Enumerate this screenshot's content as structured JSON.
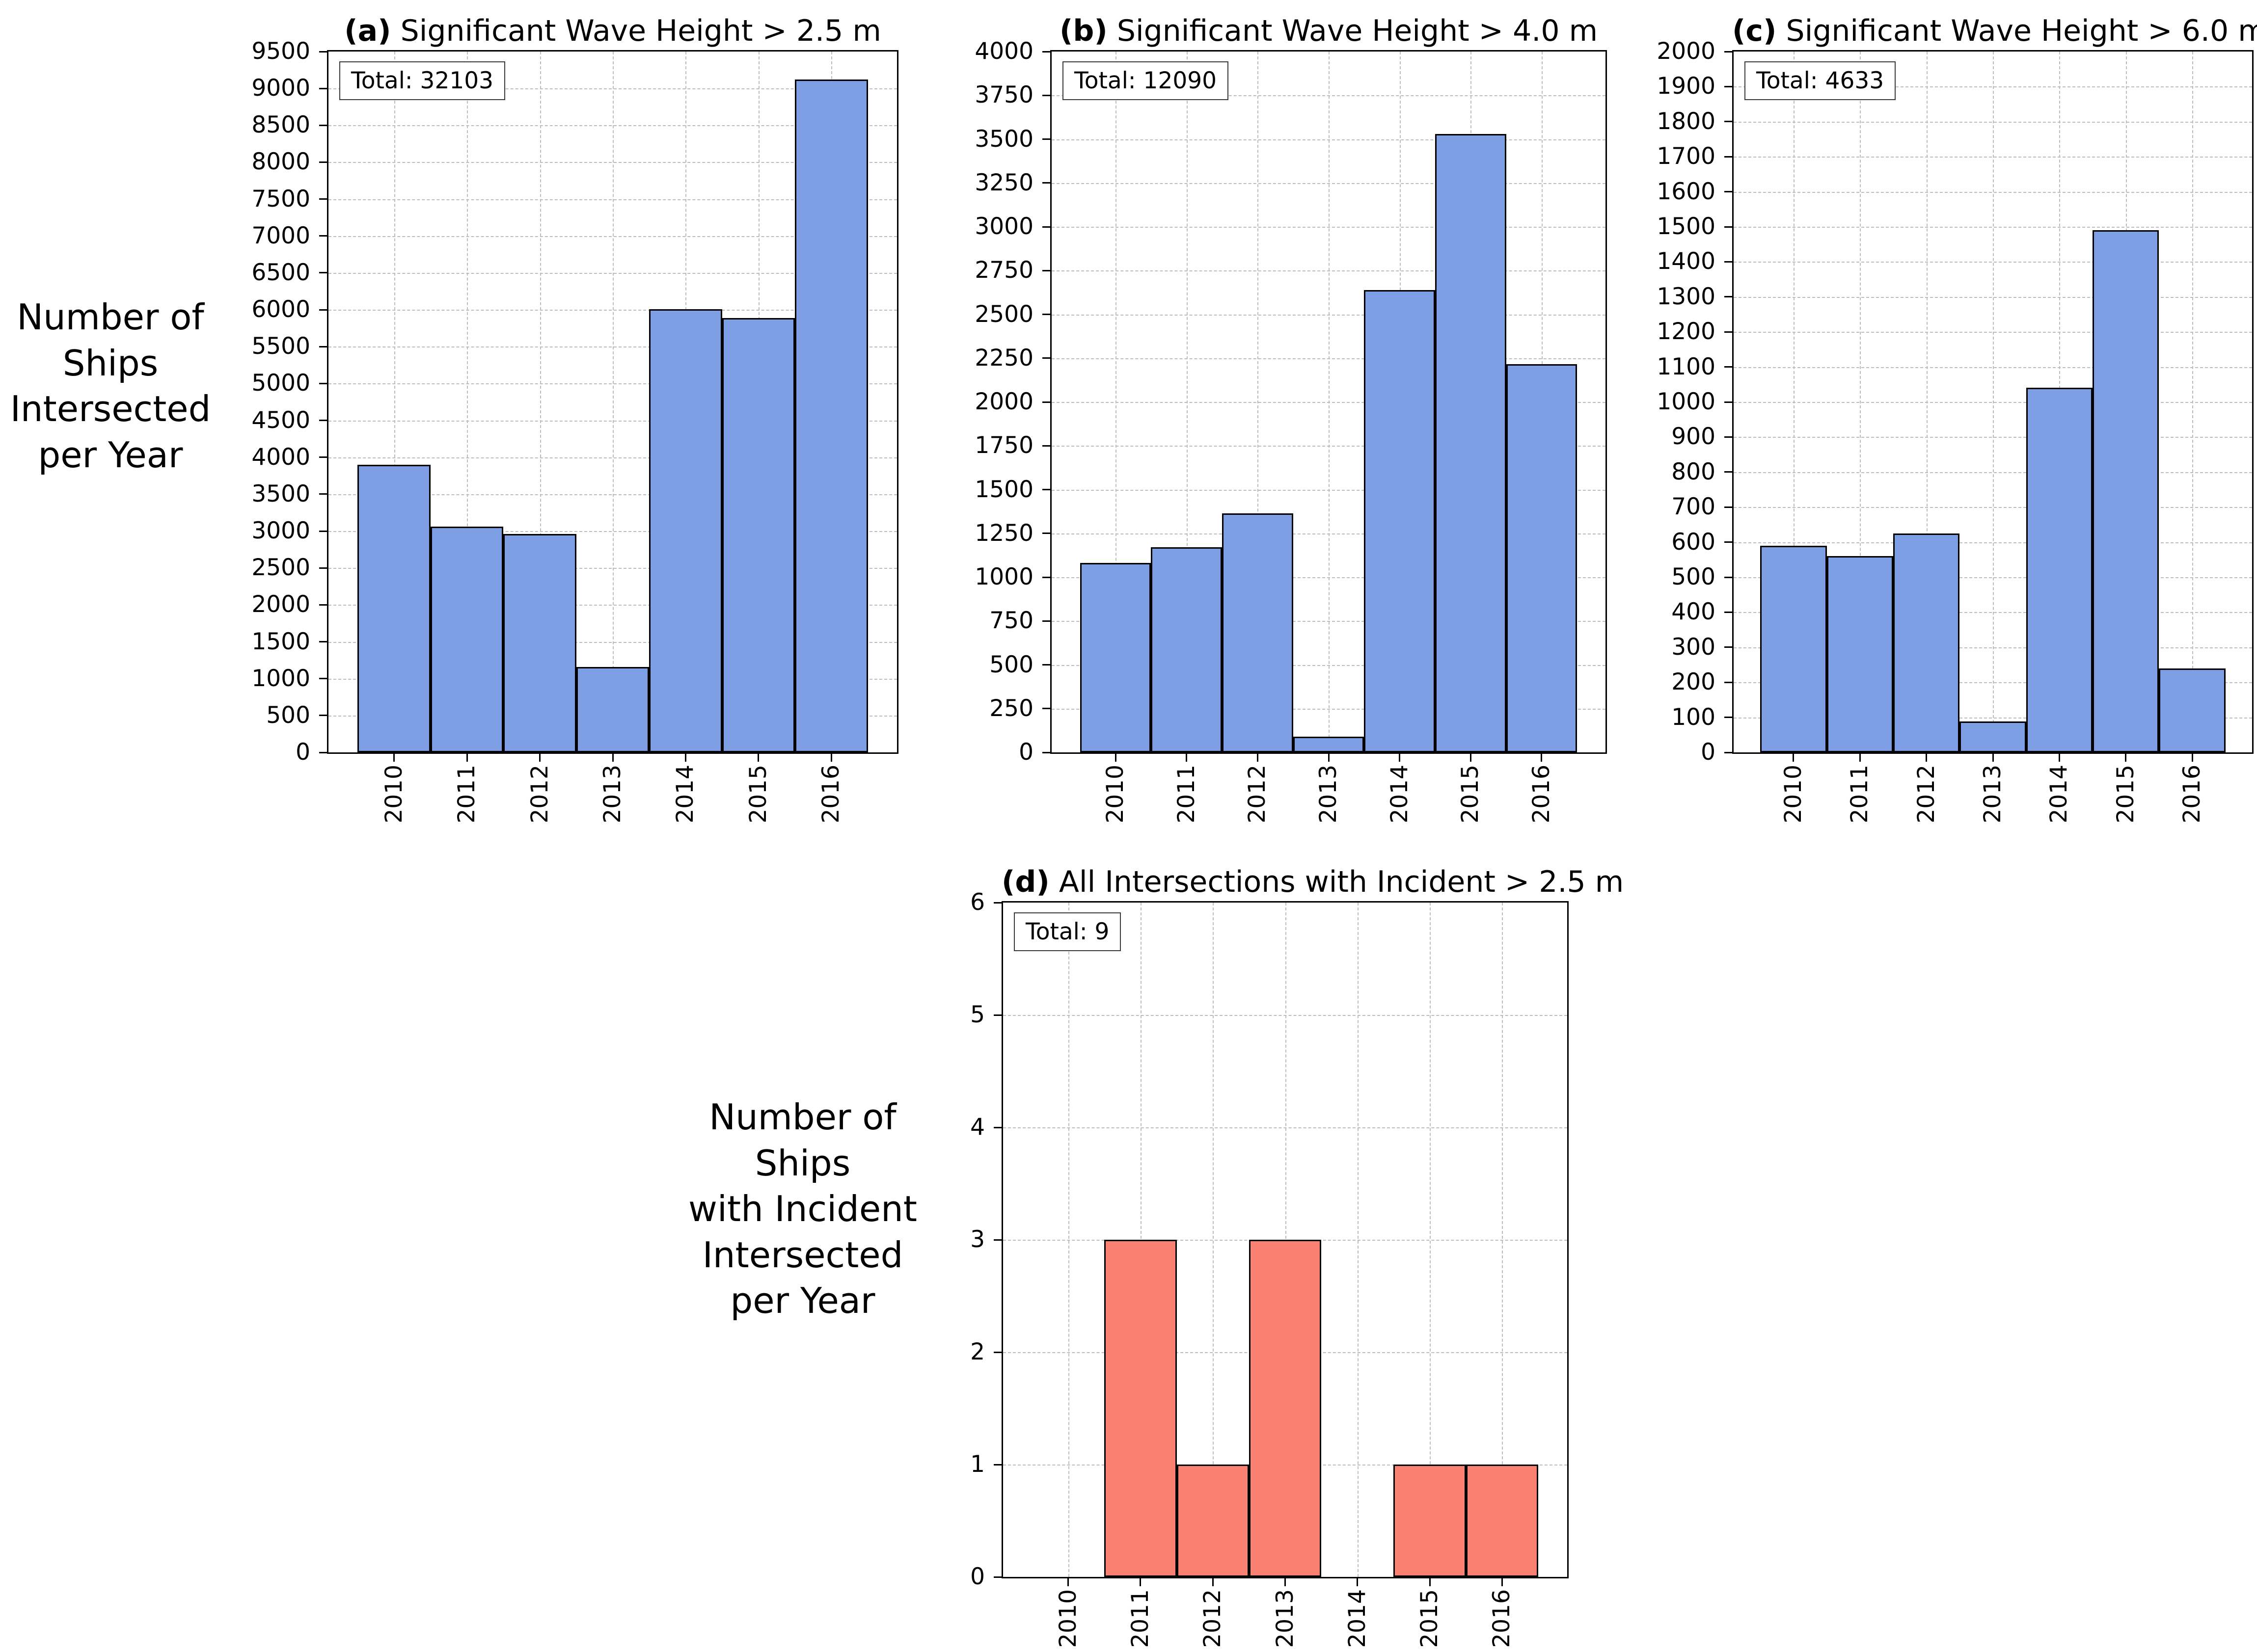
{
  "figure": {
    "ylabel_top": "Number of\nShips\nIntersected\nper Year",
    "ylabel_bottom": "Number of\nShips\nwith Incident\nIntersected\nper Year"
  },
  "chart_data": [
    {
      "type": "bar",
      "panel": "a",
      "title_prefix": "(a)",
      "title_rest": " Significant Wave Height > 2.5 m",
      "total_label": "Total: 32103",
      "total": 32103,
      "categories": [
        "2010",
        "2011",
        "2012",
        "2013",
        "2014",
        "2015",
        "2016"
      ],
      "values": [
        3900,
        3060,
        2960,
        1160,
        6010,
        5890,
        9123
      ],
      "ylim": [
        0,
        9500
      ],
      "ytick_step": 500,
      "grid": true,
      "bar_color": "#7D9EE2",
      "bar_edge_color": "#000000"
    },
    {
      "type": "bar",
      "panel": "b",
      "title_prefix": "(b)",
      "title_rest": " Significant Wave Height > 4.0 m",
      "total_label": "Total: 12090",
      "total": 12090,
      "categories": [
        "2010",
        "2011",
        "2012",
        "2013",
        "2014",
        "2015",
        "2016"
      ],
      "values": [
        1080,
        1170,
        1365,
        90,
        2640,
        3530,
        2215
      ],
      "ylim": [
        0,
        4000
      ],
      "ytick_step": 250,
      "grid": true,
      "bar_color": "#7D9EE2",
      "bar_edge_color": "#000000"
    },
    {
      "type": "bar",
      "panel": "c",
      "title_prefix": "(c)",
      "title_rest": " Significant Wave Height > 6.0 m",
      "total_label": "Total: 4633",
      "total": 4633,
      "categories": [
        "2010",
        "2011",
        "2012",
        "2013",
        "2014",
        "2015",
        "2016"
      ],
      "values": [
        590,
        560,
        625,
        88,
        1040,
        1490,
        240
      ],
      "ylim": [
        0,
        2000
      ],
      "ytick_step": 100,
      "grid": true,
      "bar_color": "#7D9EE2",
      "bar_edge_color": "#000000"
    },
    {
      "type": "bar",
      "panel": "d",
      "title_prefix": "(d)",
      "title_rest": " All Intersections with Incident > 2.5 m",
      "total_label": "Total: 9",
      "total": 9,
      "categories": [
        "2010",
        "2011",
        "2012",
        "2013",
        "2014",
        "2015",
        "2016"
      ],
      "values": [
        0,
        3,
        1,
        3,
        0,
        1,
        1
      ],
      "ylim": [
        0,
        6
      ],
      "ytick_step": 1,
      "grid": true,
      "bar_color": "#FA8072",
      "bar_edge_color": "#000000"
    }
  ]
}
